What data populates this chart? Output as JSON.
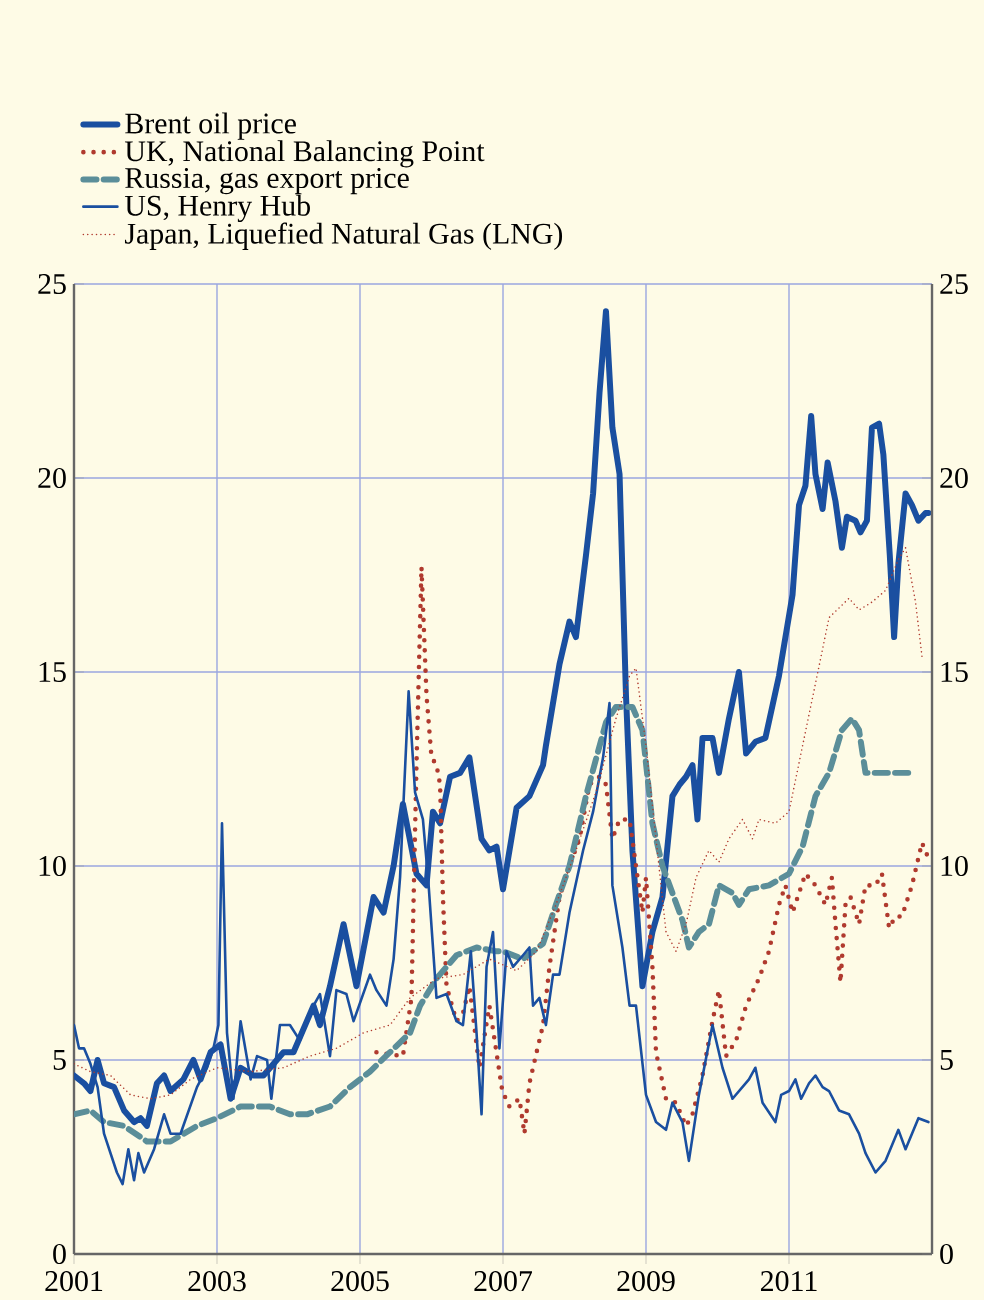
{
  "chart_data": {
    "type": "line",
    "xlim": [
      2001,
      2013
    ],
    "ylim": [
      0,
      25
    ],
    "y2lim": [
      0,
      25
    ],
    "xticks": [
      2001,
      2003,
      2005,
      2007,
      2009,
      2011
    ],
    "yticks": [
      0,
      5,
      10,
      15,
      20,
      25
    ],
    "y2ticks": [
      0,
      5,
      10,
      15,
      20,
      25
    ],
    "grid": true,
    "legend": "top left",
    "series": [
      {
        "name": "Brent oil price",
        "color": "#1a4fa0",
        "line_style": "solid",
        "x": [
          2001.0,
          2001.14,
          2001.23,
          2001.33,
          2001.42,
          2001.56,
          2001.7,
          2001.84,
          2001.93,
          2002.02,
          2002.16,
          2002.26,
          2002.35,
          2002.53,
          2002.67,
          2002.77,
          2002.91,
          2003.05,
          2003.19,
          2003.33,
          2003.51,
          2003.65,
          2003.93,
          2004.07,
          2004.35,
          2004.44,
          2004.58,
          2004.77,
          2004.95,
          2005.19,
          2005.33,
          2005.47,
          2005.6,
          2005.79,
          2005.93,
          2006.02,
          2006.12,
          2006.26,
          2006.4,
          2006.53,
          2006.7,
          2006.81,
          2006.91,
          2007.0,
          2007.19,
          2007.37,
          2007.56,
          2007.6,
          2007.79,
          2007.93,
          2008.02,
          2008.16,
          2008.26,
          2008.35,
          2008.44,
          2008.53,
          2008.63,
          2008.72,
          2008.81,
          2008.95,
          2009.09,
          2009.23,
          2009.37,
          2009.47,
          2009.56,
          2009.65,
          2009.72,
          2009.79,
          2009.93,
          2010.02,
          2010.16,
          2010.3,
          2010.4,
          2010.53,
          2010.67,
          2010.86,
          2011.05,
          2011.14,
          2011.23,
          2011.31,
          2011.37,
          2011.47,
          2011.54,
          2011.65,
          2011.74,
          2011.81,
          2011.93,
          2012.0,
          2012.09,
          2012.16,
          2012.26,
          2012.32,
          2012.41,
          2012.47,
          2012.53,
          2012.63,
          2012.72,
          2012.81,
          2012.91,
          2012.95
        ],
        "values": [
          4.6,
          4.4,
          4.2,
          5.0,
          4.4,
          4.3,
          3.7,
          3.4,
          3.5,
          3.3,
          4.4,
          4.6,
          4.2,
          4.5,
          5.0,
          4.5,
          5.2,
          5.4,
          4.0,
          4.8,
          4.6,
          4.6,
          5.2,
          5.2,
          6.4,
          5.9,
          6.9,
          8.5,
          6.9,
          9.2,
          8.8,
          10.0,
          11.6,
          9.8,
          9.5,
          11.4,
          11.1,
          12.3,
          12.4,
          12.8,
          10.7,
          10.4,
          10.5,
          9.4,
          11.5,
          11.8,
          12.6,
          13.1,
          15.2,
          16.3,
          15.9,
          18.0,
          19.6,
          22.2,
          24.3,
          21.3,
          20.1,
          14.4,
          10.4,
          6.9,
          8.3,
          9.2,
          11.8,
          12.1,
          12.3,
          12.6,
          11.2,
          13.3,
          13.3,
          12.4,
          13.8,
          15.0,
          12.9,
          13.2,
          13.3,
          14.9,
          17.0,
          19.3,
          19.8,
          21.6,
          20.1,
          19.2,
          20.4,
          19.4,
          18.2,
          19.0,
          18.9,
          18.6,
          18.9,
          21.3,
          21.4,
          20.6,
          18.0,
          15.9,
          17.8,
          19.6,
          19.3,
          18.9,
          19.1,
          19.1
        ]
      },
      {
        "name": "UK, National Balancing Point",
        "color": "#b03a2e",
        "line_style": "dotted",
        "x": [
          2005.23,
          2005.6,
          2005.72,
          2005.79,
          2005.86,
          2005.93,
          2006.0,
          2006.07,
          2006.12,
          2006.16,
          2006.21,
          2006.35,
          2006.44,
          2006.53,
          2006.67,
          2006.81,
          2006.99,
          2007.09,
          2007.23,
          2007.3,
          2007.37,
          2007.47,
          2007.56,
          2007.65,
          2007.79,
          2007.93,
          2008.07,
          2008.21,
          2008.35,
          2008.44,
          2008.53,
          2008.63,
          2008.77,
          2008.86,
          2008.95,
          2009.0,
          2009.09,
          2009.14,
          2009.28,
          2009.42,
          2009.56,
          2009.65,
          2009.79,
          2009.93,
          2010.02,
          2010.12,
          2010.26,
          2010.4,
          2010.58,
          2010.72,
          2010.86,
          2010.95,
          2011.05,
          2011.23,
          2011.37,
          2011.51,
          2011.6,
          2011.65,
          2011.72,
          2011.79,
          2011.86,
          2011.98,
          2012.07,
          2012.21,
          2012.3,
          2012.4,
          2012.49,
          2012.58,
          2012.72,
          2012.86,
          2012.95
        ],
        "values": [
          5.2,
          5.1,
          6.6,
          12.6,
          17.7,
          14.4,
          12.8,
          12.6,
          12.1,
          9.2,
          6.9,
          6.0,
          6.2,
          6.9,
          4.8,
          6.4,
          4.2,
          3.8,
          4.0,
          3.1,
          4.4,
          5.2,
          5.9,
          7.4,
          9.2,
          10.0,
          10.7,
          12.1,
          12.3,
          12.1,
          10.7,
          11.2,
          11.2,
          10.0,
          8.8,
          9.7,
          7.4,
          5.2,
          4.0,
          3.9,
          3.3,
          3.6,
          4.6,
          6.0,
          6.8,
          5.1,
          5.5,
          6.4,
          7.1,
          7.8,
          9.0,
          9.5,
          8.8,
          9.8,
          9.5,
          9.0,
          9.7,
          8.5,
          7.0,
          9.0,
          9.2,
          8.5,
          9.5,
          9.5,
          9.8,
          8.4,
          8.7,
          8.7,
          9.5,
          10.6,
          10.2
        ]
      },
      {
        "name": "Russia, gas export price",
        "color": "#5b8e99",
        "line_style": "dashed",
        "x": [
          2001.0,
          2001.23,
          2001.42,
          2001.7,
          2002.02,
          2002.35,
          2002.72,
          2003.0,
          2003.33,
          2003.74,
          2004.02,
          2004.26,
          2004.58,
          2004.86,
          2005.14,
          2005.42,
          2005.7,
          2005.84,
          2006.07,
          2006.35,
          2006.63,
          2006.91,
          2007.0,
          2007.28,
          2007.56,
          2007.74,
          2007.93,
          2008.16,
          2008.44,
          2008.58,
          2008.81,
          2008.95,
          2009.09,
          2009.23,
          2009.37,
          2009.51,
          2009.6,
          2009.74,
          2009.88,
          2010.02,
          2010.21,
          2010.3,
          2010.44,
          2010.72,
          2011.0,
          2011.19,
          2011.37,
          2011.56,
          2011.74,
          2011.88,
          2011.98,
          2012.07,
          2012.4,
          2012.72
        ],
        "values": [
          3.6,
          3.7,
          3.4,
          3.3,
          2.9,
          2.9,
          3.3,
          3.5,
          3.8,
          3.8,
          3.6,
          3.6,
          3.8,
          4.3,
          4.7,
          5.2,
          5.7,
          6.4,
          7.1,
          7.7,
          7.9,
          7.8,
          7.8,
          7.6,
          8.0,
          9.0,
          10.0,
          11.8,
          13.7,
          14.1,
          14.1,
          13.5,
          11.1,
          10.0,
          9.3,
          8.6,
          7.9,
          8.3,
          8.5,
          9.5,
          9.3,
          9.0,
          9.4,
          9.5,
          9.8,
          10.5,
          11.8,
          12.4,
          13.5,
          13.8,
          13.5,
          12.4,
          12.4,
          12.4
        ]
      },
      {
        "name": "US, Henry Hub",
        "color": "#1a4fa0",
        "line_style": "solid",
        "x": [
          2001.0,
          2001.07,
          2001.14,
          2001.23,
          2001.33,
          2001.42,
          2001.6,
          2001.68,
          2001.76,
          2001.84,
          2001.9,
          2001.98,
          2002.12,
          2002.26,
          2002.35,
          2002.49,
          2002.72,
          2002.86,
          2002.95,
          2003.02,
          2003.07,
          2003.14,
          2003.23,
          2003.33,
          2003.47,
          2003.56,
          2003.7,
          2003.76,
          2003.88,
          2004.02,
          2004.16,
          2004.35,
          2004.44,
          2004.58,
          2004.67,
          2004.81,
          2004.91,
          2005.14,
          2005.23,
          2005.37,
          2005.47,
          2005.56,
          2005.68,
          2005.77,
          2005.88,
          2005.96,
          2006.07,
          2006.21,
          2006.35,
          2006.44,
          2006.55,
          2006.63,
          2006.7,
          2006.77,
          2006.86,
          2006.95,
          2007.05,
          2007.14,
          2007.28,
          2007.37,
          2007.42,
          2007.51,
          2007.6,
          2007.7,
          2007.79,
          2007.93,
          2008.12,
          2008.26,
          2008.4,
          2008.49,
          2008.53,
          2008.67,
          2008.77,
          2008.86,
          2009.0,
          2009.14,
          2009.28,
          2009.37,
          2009.51,
          2009.6,
          2009.74,
          2009.93,
          2010.07,
          2010.21,
          2010.44,
          2010.53,
          2010.63,
          2010.81,
          2010.89,
          2011.0,
          2011.09,
          2011.17,
          2011.28,
          2011.37,
          2011.47,
          2011.56,
          2011.7,
          2011.84,
          2011.98,
          2012.07,
          2012.21,
          2012.35,
          2012.53,
          2012.63,
          2012.81,
          2012.95
        ],
        "values": [
          5.9,
          5.3,
          5.3,
          4.9,
          4.3,
          3.1,
          2.1,
          1.8,
          2.7,
          1.9,
          2.6,
          2.1,
          2.7,
          3.6,
          3.1,
          3.1,
          4.3,
          4.8,
          5.3,
          5.9,
          11.1,
          5.7,
          4.0,
          6.0,
          4.5,
          5.1,
          5.0,
          4.0,
          5.9,
          5.9,
          5.5,
          6.4,
          6.7,
          5.1,
          6.8,
          6.7,
          6.0,
          7.2,
          6.8,
          6.4,
          7.6,
          9.7,
          14.5,
          11.9,
          11.2,
          9.5,
          6.6,
          6.7,
          6.0,
          5.9,
          7.8,
          5.7,
          3.6,
          7.4,
          8.3,
          5.3,
          7.8,
          7.4,
          7.7,
          7.9,
          6.4,
          6.6,
          5.9,
          7.2,
          7.2,
          8.8,
          10.4,
          11.4,
          12.8,
          14.2,
          9.5,
          7.9,
          6.4,
          6.4,
          4.1,
          3.4,
          3.2,
          3.9,
          3.4,
          2.4,
          4.1,
          5.9,
          4.8,
          4.0,
          4.5,
          4.8,
          3.9,
          3.4,
          4.1,
          4.2,
          4.5,
          4.0,
          4.4,
          4.6,
          4.3,
          4.2,
          3.7,
          3.6,
          3.1,
          2.6,
          2.1,
          2.4,
          3.2,
          2.7,
          3.5,
          3.4
        ]
      },
      {
        "name": "Japan, Liquefied Natural Gas (LNG)",
        "color": "#b03a2e",
        "line_style": "dotted",
        "x": [
          2001.0,
          2001.23,
          2001.51,
          2001.79,
          2002.07,
          2002.35,
          2002.63,
          2003.0,
          2003.47,
          2003.93,
          2004.3,
          2004.67,
          2005.05,
          2005.42,
          2005.7,
          2006.07,
          2006.44,
          2006.81,
          2007.19,
          2007.47,
          2007.74,
          2008.02,
          2008.3,
          2008.58,
          2008.77,
          2008.86,
          2009.0,
          2009.14,
          2009.28,
          2009.42,
          2009.56,
          2009.7,
          2009.88,
          2010.02,
          2010.16,
          2010.35,
          2010.49,
          2010.58,
          2010.81,
          2011.0,
          2011.19,
          2011.37,
          2011.56,
          2011.84,
          2011.98,
          2012.16,
          2012.35,
          2012.53,
          2012.63,
          2012.77,
          2012.86
        ],
        "values": [
          4.9,
          4.7,
          4.6,
          4.1,
          4.0,
          4.1,
          4.5,
          4.8,
          4.7,
          4.8,
          5.1,
          5.3,
          5.7,
          5.9,
          6.6,
          7.1,
          7.2,
          7.6,
          7.3,
          7.8,
          9.0,
          10.4,
          11.9,
          13.8,
          14.9,
          15.1,
          13.1,
          10.7,
          8.3,
          7.8,
          8.5,
          9.7,
          10.4,
          10.1,
          10.7,
          11.2,
          10.7,
          11.2,
          11.1,
          11.4,
          13.1,
          14.7,
          16.4,
          16.9,
          16.6,
          16.8,
          17.1,
          17.9,
          18.2,
          16.8,
          15.4
        ]
      }
    ]
  }
}
